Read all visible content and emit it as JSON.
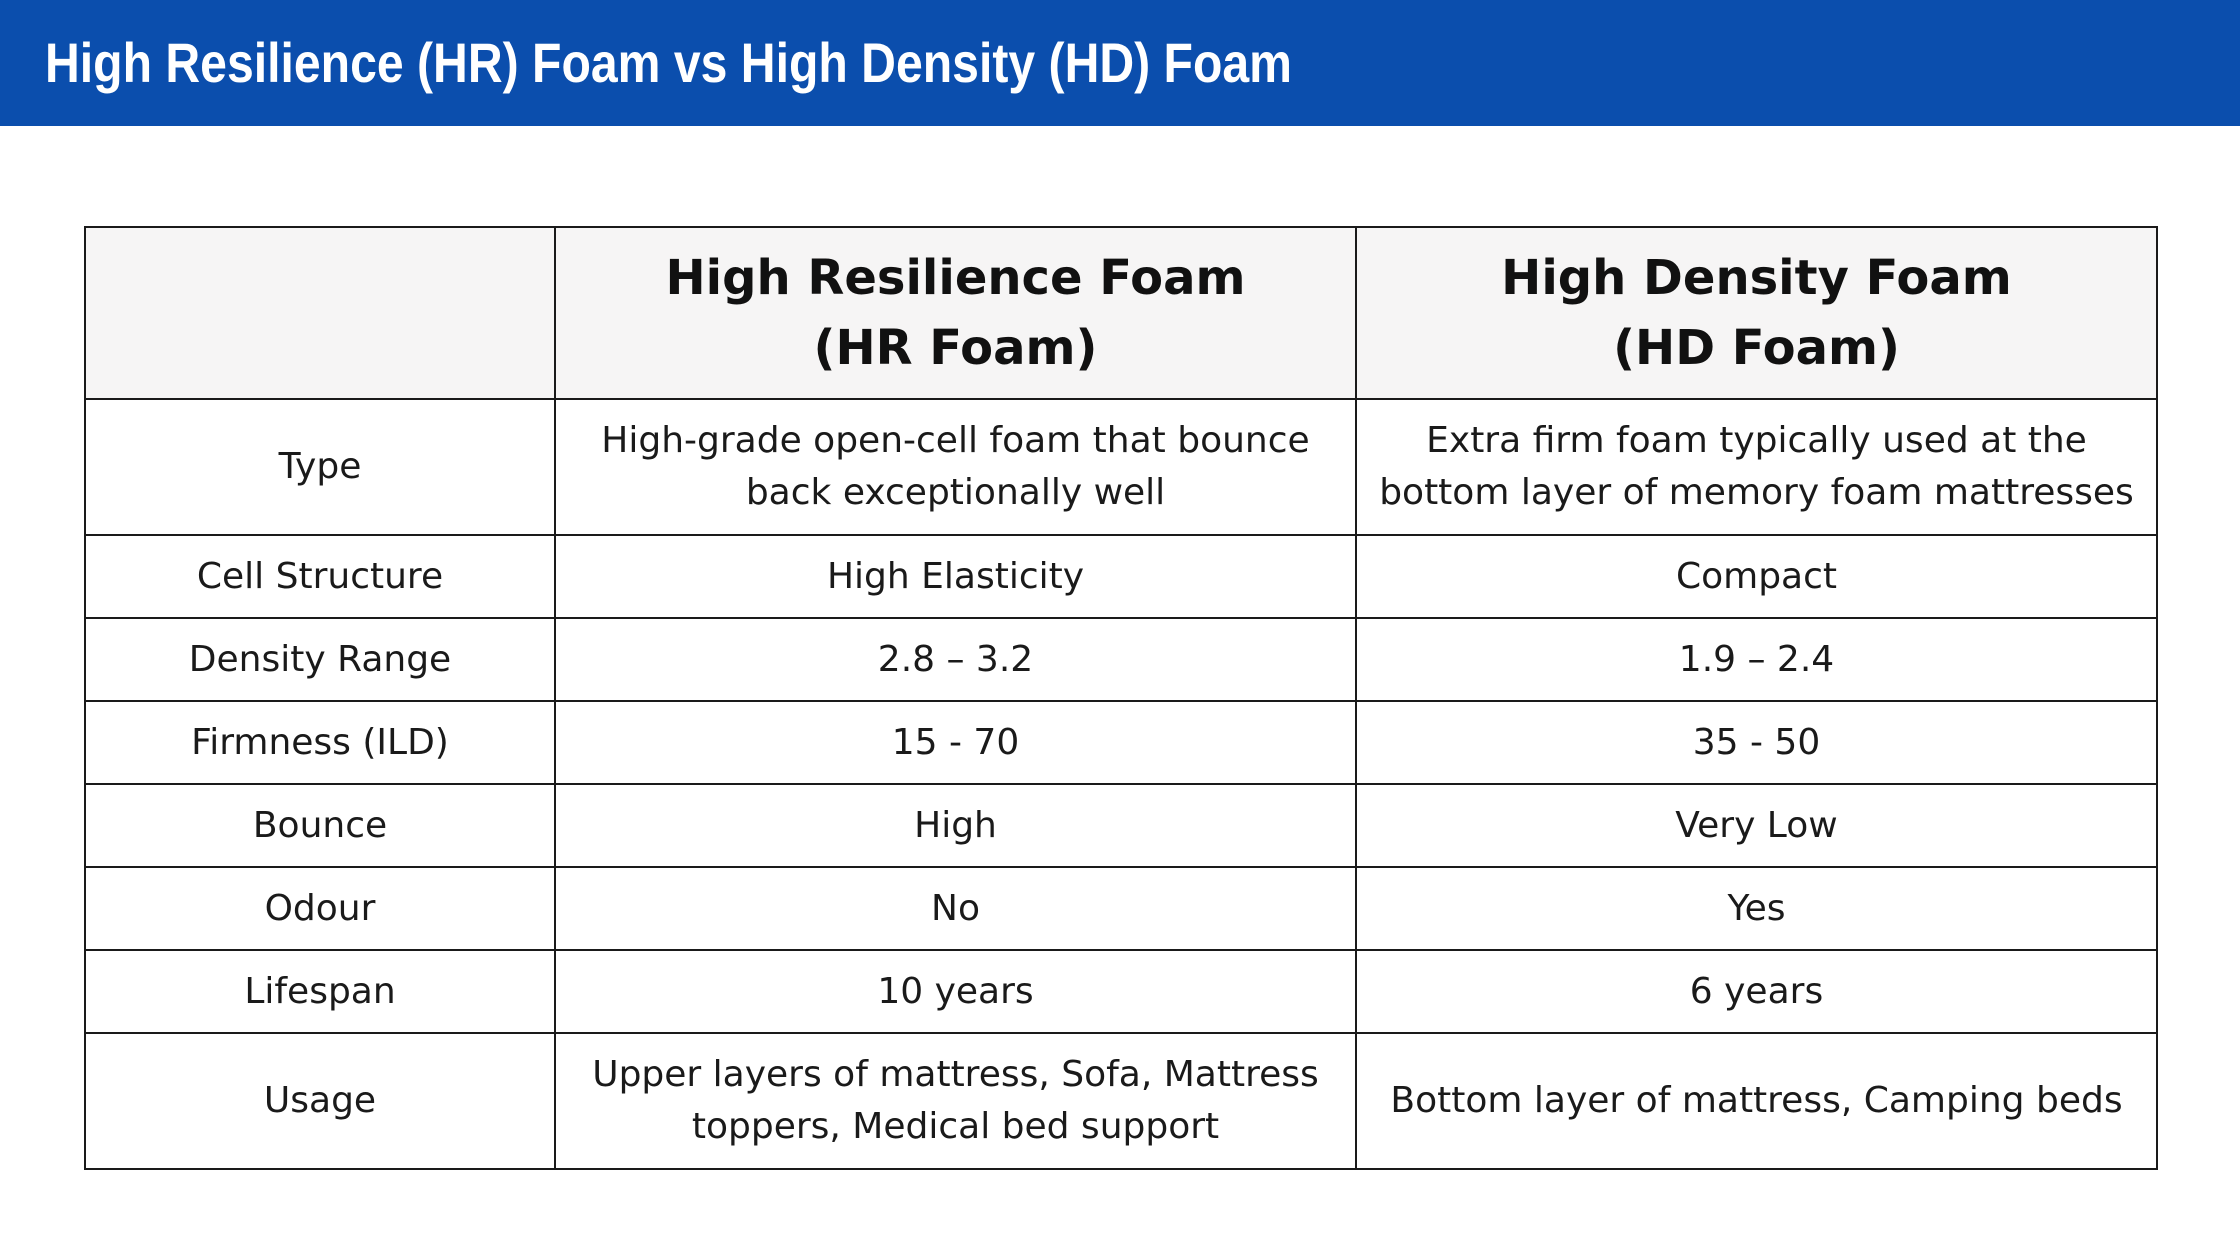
{
  "banner": {
    "title": "High Resilience (HR) Foam vs High Density (HD) Foam"
  },
  "table": {
    "headers": {
      "corner": "",
      "hr": {
        "line1": "High Resilience Foam",
        "line2": "(HR Foam)"
      },
      "hd": {
        "line1": "High Density Foam",
        "line2": "(HD Foam)"
      }
    },
    "rows": [
      {
        "label": "Type",
        "hr_line1": "High-grade open-cell foam that bounce",
        "hr_line2": "back exceptionally well",
        "hd_line1": "Extra firm foam typically used at the",
        "hd_line2": "bottom layer of memory foam mattresses"
      },
      {
        "label": "Cell Structure",
        "hr": "High Elasticity",
        "hd": "Compact"
      },
      {
        "label": "Density Range",
        "hr": "2.8 – 3.2",
        "hd": "1.9 – 2.4"
      },
      {
        "label": "Firmness (ILD)",
        "hr": "15 - 70",
        "hd": "35 - 50"
      },
      {
        "label": "Bounce",
        "hr": "High",
        "hd": "Very Low"
      },
      {
        "label": "Odour",
        "hr": "No",
        "hd": "Yes"
      },
      {
        "label": "Lifespan",
        "hr": "10 years",
        "hd": "6 years"
      },
      {
        "label": "Usage",
        "hr_line1": "Upper layers of mattress, Sofa, Mattress",
        "hr_line2": "toppers, Medical bed support",
        "hd": "Bottom layer of mattress, Camping beds"
      }
    ]
  },
  "colors": {
    "banner_background": "#0b4ead",
    "banner_text": "#ffffff",
    "header_background": "#f6f5f5",
    "border": "#1a1a1a"
  }
}
